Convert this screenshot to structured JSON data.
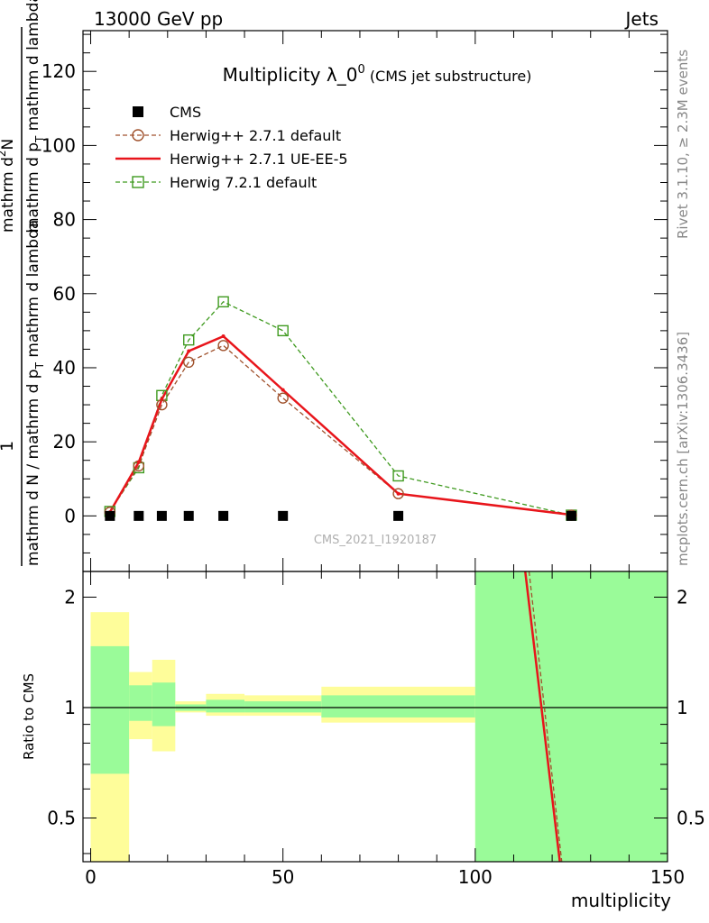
{
  "header": {
    "left": "13000 GeV pp",
    "right": "Jets"
  },
  "side_labels": {
    "rivet": "Rivet 3.1.10, ≥ 2.3M events",
    "mcplots": "mcplots.cern.ch [arXiv:1306.3436]"
  },
  "watermark": "CMS_2021_I1920187",
  "colors": {
    "cms": "#000000",
    "herwig_default": "#a0522d",
    "herwig_ueee5": "#e8151b",
    "herwig721": "#3f9a1f",
    "band_green": "#9afb99",
    "band_yellow": "#fefd9a"
  },
  "chart_data": [
    {
      "type": "line",
      "title": "Multiplicity λ_0",
      "title_sup": "0",
      "title_suffix": "(CMS jet substructure)",
      "ylabel_parts": {
        "one": "1",
        "den": "mathrm d N / mathrm d p",
        "den_sub": "T",
        "den_tail": "mathrm d lambda",
        "num": "mathrm d",
        "num_sup": "2",
        "num_tail": "N",
        "mid": "mathrm d p",
        "mid_sub": "T",
        "last": "mathrm d lambda"
      },
      "xlim": [
        -2,
        150
      ],
      "ylim": [
        -15,
        131
      ],
      "yticks": [
        0,
        20,
        40,
        60,
        80,
        100,
        120
      ],
      "grid": false,
      "legend_position": "top-left",
      "series": [
        {
          "name": "CMS",
          "style": "markers",
          "x": [
            5,
            12.5,
            18.5,
            25.5,
            34.5,
            50,
            80,
            125
          ],
          "y": [
            0,
            0,
            0,
            0,
            0,
            0,
            0,
            0
          ]
        },
        {
          "name": "Herwig++ 2.7.1 default",
          "style": "dashed-circle",
          "x": [
            5,
            12.5,
            18.5,
            25.5,
            34.5,
            50,
            80,
            125
          ],
          "y": [
            1.0,
            13.5,
            30.0,
            41.5,
            46.0,
            31.8,
            6.0,
            0.2
          ]
        },
        {
          "name": "Herwig++ 2.7.1 UE-EE-5",
          "style": "solid",
          "x": [
            5,
            12.5,
            18.5,
            25.5,
            34.5,
            50,
            80,
            125
          ],
          "y": [
            1.0,
            14.5,
            31.5,
            44.5,
            48.5,
            34.0,
            6.0,
            0.3
          ]
        },
        {
          "name": "Herwig 7.2.1 default",
          "style": "dashed-square",
          "x": [
            5,
            12.5,
            18.5,
            25.5,
            34.5,
            50,
            80,
            125
          ],
          "y": [
            1.2,
            13.0,
            32.5,
            47.5,
            57.8,
            50.0,
            10.8,
            0.2
          ]
        }
      ]
    },
    {
      "type": "area",
      "ylabel": "Ratio to CMS",
      "xlabel": "multiplicity",
      "xlim": [
        -2,
        150
      ],
      "ylim": [
        0.38,
        2.35
      ],
      "log_scale_y": true,
      "xticks": [
        0,
        50,
        100,
        150
      ],
      "yticks": [
        0.5,
        1,
        2
      ],
      "bands": [
        {
          "x": [
            0,
            10
          ],
          "yellow": [
            0.3,
            1.82
          ],
          "green": [
            0.66,
            1.47
          ]
        },
        {
          "x": [
            10,
            16
          ],
          "yellow": [
            0.82,
            1.25
          ],
          "green": [
            0.92,
            1.15
          ]
        },
        {
          "x": [
            16,
            22
          ],
          "yellow": [
            0.76,
            1.35
          ],
          "green": [
            0.89,
            1.17
          ]
        },
        {
          "x": [
            22,
            30
          ],
          "yellow": [
            0.97,
            1.04
          ],
          "green": [
            0.98,
            1.02
          ]
        },
        {
          "x": [
            30,
            40
          ],
          "yellow": [
            0.95,
            1.09
          ],
          "green": [
            0.97,
            1.05
          ]
        },
        {
          "x": [
            40,
            60
          ],
          "yellow": [
            0.95,
            1.08
          ],
          "green": [
            0.97,
            1.04
          ]
        },
        {
          "x": [
            60,
            100
          ],
          "yellow": [
            0.91,
            1.14
          ],
          "green": [
            0.94,
            1.08
          ]
        },
        {
          "x": [
            100,
            150
          ],
          "yellow": [
            0.3,
            2.5
          ],
          "green": [
            0.3,
            2.5
          ]
        }
      ],
      "ratio_lines": [
        {
          "name": "Herwig++ 2.7.1 UE-EE-5",
          "x": [
            113,
            122
          ],
          "y": [
            2.4,
            0.35
          ]
        },
        {
          "name": "Herwig++ 2.7.1 default",
          "x": [
            114,
            122.5
          ],
          "y": [
            2.4,
            0.35
          ]
        }
      ]
    }
  ]
}
